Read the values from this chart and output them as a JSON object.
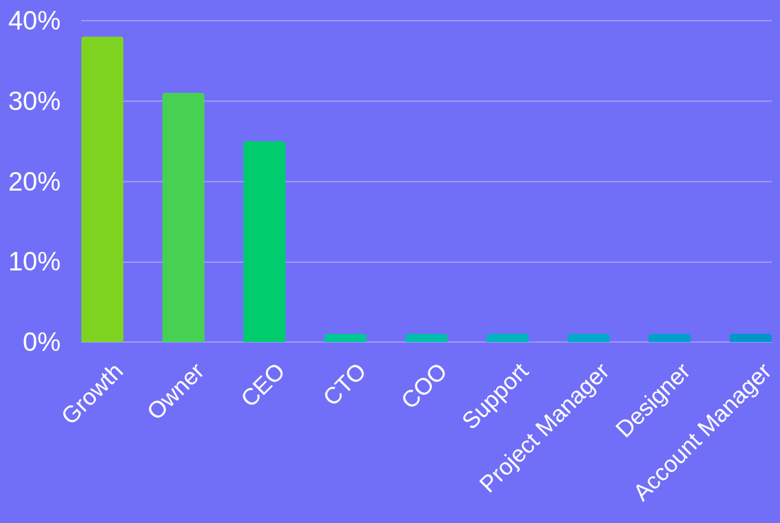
{
  "chart_data": {
    "type": "bar",
    "categories": [
      "Growth",
      "Owner",
      "CEO",
      "CTO",
      "COO",
      "Support",
      "Project Manager",
      "Designer",
      "Account Manager"
    ],
    "values": [
      38,
      31,
      25,
      1,
      1,
      1,
      1,
      1,
      1
    ],
    "colors": [
      "#7ed321",
      "#47d152",
      "#00cc6e",
      "#00c894",
      "#00bfaa",
      "#00b5bd",
      "#00aac8",
      "#00a0cc",
      "#0096c8"
    ],
    "ylim": [
      0,
      40
    ],
    "yticks": [
      {
        "value": 0,
        "label": "0%"
      },
      {
        "value": 10,
        "label": "10%"
      },
      {
        "value": 20,
        "label": "20%"
      },
      {
        "value": 30,
        "label": "30%"
      },
      {
        "value": 40,
        "label": "40%"
      }
    ],
    "grid": "y"
  }
}
